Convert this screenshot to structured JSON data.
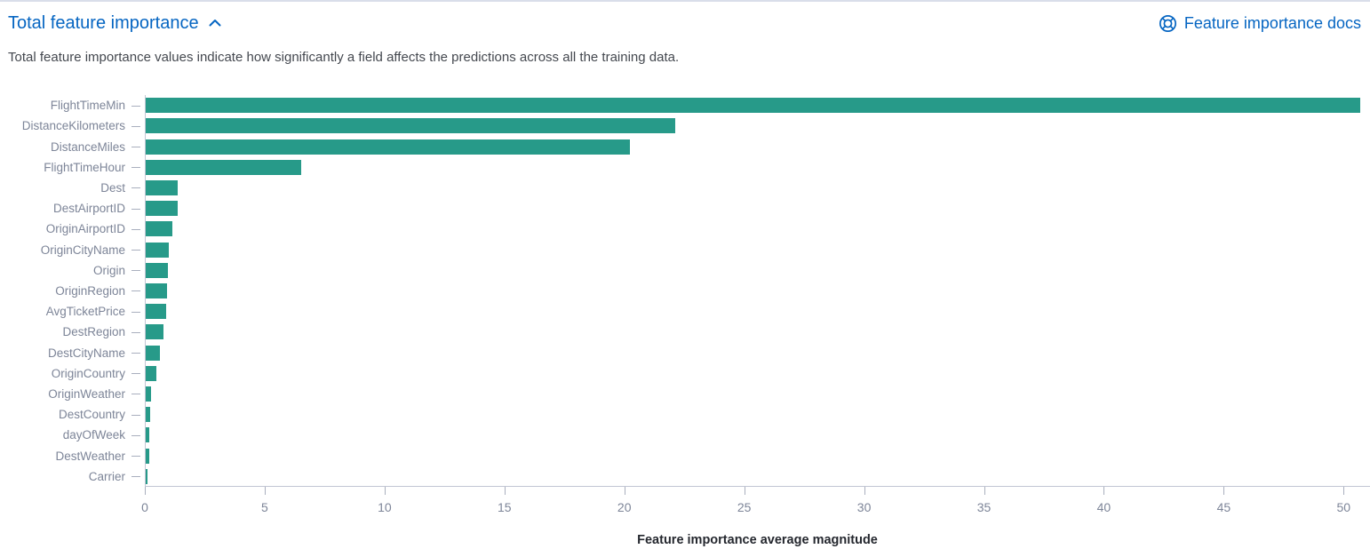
{
  "header": {
    "title": "Total feature importance",
    "collapse_icon": "chevron-up-icon",
    "docs_link_label": "Feature importance docs",
    "docs_link_icon": "lifebuoy-help-icon"
  },
  "description": "Total feature importance values indicate how significantly a field affects the predictions across all the training data.",
  "colors": {
    "bar": "#279a89",
    "link_blue": "#0565c2",
    "axis_line": "#c2c6d3",
    "tick_line": "#a9afbe",
    "axis_label": "#7d8598",
    "axis_title": "#24272e",
    "description_text": "#44484f",
    "top_border": "#d9deea"
  },
  "chart_data": {
    "type": "bar",
    "orientation": "horizontal",
    "title": "",
    "xlabel": "Feature importance average magnitude",
    "ylabel": "",
    "categories": [
      "FlightTimeMin",
      "DistanceKilometers",
      "DistanceMiles",
      "FlightTimeHour",
      "Dest",
      "DestAirportID",
      "OriginAirportID",
      "OriginCityName",
      "Origin",
      "OriginRegion",
      "AvgTicketPrice",
      "DestRegion",
      "DestCityName",
      "OriginCountry",
      "OriginWeather",
      "DestCountry",
      "dayOfWeek",
      "DestWeather",
      "Carrier"
    ],
    "values": [
      50.7,
      22.1,
      20.2,
      6.5,
      1.35,
      1.32,
      1.1,
      0.97,
      0.94,
      0.88,
      0.85,
      0.73,
      0.6,
      0.43,
      0.21,
      0.19,
      0.16,
      0.14,
      0.08
    ],
    "x_ticks": [
      0,
      5,
      10,
      15,
      20,
      25,
      30,
      35,
      40,
      45,
      50
    ],
    "xlim": [
      0,
      51.1
    ],
    "grid": false,
    "legend": "none",
    "bar_color": "#279a89"
  }
}
